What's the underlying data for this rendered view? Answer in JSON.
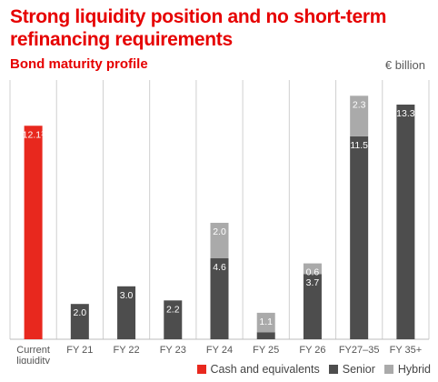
{
  "header": {
    "title": "Strong liquidity position and no short-term refinancing requirements",
    "subtitle": "Bond maturity profile",
    "unit": "€ billion"
  },
  "colors": {
    "cash": "#e8281e",
    "senior": "#4d4d4d",
    "hybrid": "#aaaaaa",
    "gridline": "#cfcfcf",
    "title": "#e60000"
  },
  "chart_data": {
    "type": "bar",
    "stacked": true,
    "categories": [
      "Current liquidity",
      "FY 21",
      "FY 22",
      "FY 23",
      "FY 24",
      "FY 25",
      "FY 26",
      "FY27–35",
      "FY 35+"
    ],
    "category_lines": [
      [
        "Current",
        "liquidity"
      ],
      [
        "FY 21"
      ],
      [
        "FY 22"
      ],
      [
        "FY 23"
      ],
      [
        "FY 24"
      ],
      [
        "FY 25"
      ],
      [
        "FY 26"
      ],
      [
        "FY27–35"
      ],
      [
        "FY 35+"
      ]
    ],
    "series": [
      {
        "name": "Cash and equivalents",
        "color": "#e8281e",
        "values": [
          12.1,
          null,
          null,
          null,
          null,
          null,
          null,
          null,
          null
        ]
      },
      {
        "name": "Senior",
        "color": "#4d4d4d",
        "values": [
          null,
          2.0,
          3.0,
          2.2,
          4.6,
          0.4,
          3.7,
          11.5,
          13.3
        ]
      },
      {
        "name": "Hybrid",
        "color": "#aaaaaa",
        "values": [
          null,
          null,
          null,
          null,
          2.0,
          1.1,
          0.6,
          2.3,
          null
        ]
      }
    ],
    "data_labels": [
      [
        "12.1¹",
        "",
        ""
      ],
      [
        "",
        "2.0",
        ""
      ],
      [
        "",
        "3.0",
        ""
      ],
      [
        "",
        "2.2",
        ""
      ],
      [
        "",
        "4.6",
        "2.0"
      ],
      [
        "",
        "",
        "1.1"
      ],
      [
        "",
        "3.7",
        "0.6"
      ],
      [
        "",
        "11.5",
        "2.3"
      ],
      [
        "",
        "13.3",
        ""
      ]
    ],
    "legend_position": "bottom-right",
    "grid": "vertical separators"
  },
  "legend": [
    {
      "label": "Cash and equivalents",
      "color": "#e8281e"
    },
    {
      "label": "Senior",
      "color": "#4d4d4d"
    },
    {
      "label": "Hybrid",
      "color": "#aaaaaa"
    }
  ]
}
